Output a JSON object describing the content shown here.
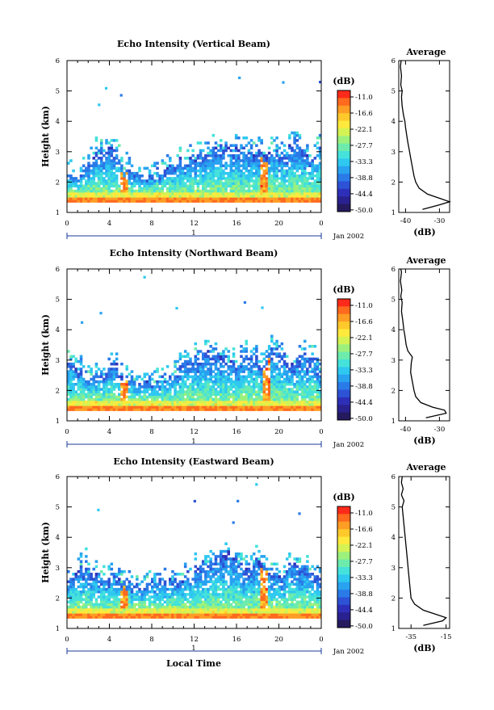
{
  "page": {
    "x_axis_label": "Local Time",
    "date_label": "Jan 2002",
    "day_label": "1",
    "colorbar_unit": "(dB)",
    "colorbar_levels": [
      "-11.0",
      "-16.6",
      "-22.1",
      "-27.7",
      "-33.3",
      "-38.8",
      "-44.4",
      "-50.0"
    ],
    "colorbar_colors": [
      "#ff2a1a",
      "#ff6a1e",
      "#ff9d25",
      "#ffc92c",
      "#ffe93c",
      "#d4f254",
      "#9cf17c",
      "#6cebad",
      "#44e2da",
      "#2fc8f0",
      "#29a2f0",
      "#2a7ae8",
      "#2d52d6",
      "#2e2fb8",
      "#2a2190",
      "#241a5e"
    ]
  },
  "chart_data": [
    {
      "type": "heatmap",
      "title": "Echo Intensity (Vertical Beam)",
      "ylabel": "Height (km)",
      "xlabel": "",
      "x_ticks": [
        "0",
        "4",
        "8",
        "12",
        "16",
        "20",
        "0"
      ],
      "xlim": [
        0,
        24
      ],
      "y_ticks": [
        "1",
        "2",
        "3",
        "4",
        "5",
        "6"
      ],
      "ylim": [
        1,
        6
      ],
      "value_range_db": [
        -50.0,
        -11.0
      ],
      "cloud_top_km": [
        2.3,
        2.2,
        2.5,
        2.9,
        3.0,
        3.1,
        2.5,
        2.4,
        2.2,
        2.3,
        2.4,
        2.6,
        2.7,
        2.8,
        2.9,
        3.0,
        3.2,
        3.3,
        3.1,
        3.0,
        2.9,
        3.0,
        3.1,
        2.8,
        3.4,
        3.0,
        2.8,
        3.5
      ],
      "bright_columns_hour": [
        5.5,
        18.5
      ],
      "average_profile": {
        "title": "Average",
        "xlabel": "(dB)",
        "x_ticks": [
          "-40",
          "-30"
        ],
        "xlim": [
          -42,
          -27
        ],
        "ylim": [
          1,
          6
        ],
        "height_km": [
          1.1,
          1.25,
          1.35,
          1.45,
          1.6,
          1.8,
          2.0,
          2.2,
          2.5,
          2.8,
          3.0,
          3.3,
          3.5,
          3.8,
          4.0,
          4.2,
          4.5,
          4.8,
          5.0,
          5.2,
          5.5,
          5.8,
          6.0
        ],
        "db": [
          -35,
          -30,
          -27,
          -29.5,
          -33.5,
          -36,
          -37,
          -37.5,
          -38,
          -38.5,
          -38.8,
          -39.3,
          -39.6,
          -40,
          -40.2,
          -40.6,
          -41,
          -41.2,
          -41,
          -41.4,
          -41.2,
          -41.5,
          -41.3
        ]
      }
    },
    {
      "type": "heatmap",
      "title": "Echo Intensity (Northward Beam)",
      "ylabel": "Height (km)",
      "xlabel": "",
      "x_ticks": [
        "0",
        "4",
        "8",
        "12",
        "16",
        "20",
        "0"
      ],
      "xlim": [
        0,
        24
      ],
      "y_ticks": [
        "1",
        "2",
        "3",
        "4",
        "5",
        "6"
      ],
      "ylim": [
        1,
        6
      ],
      "value_range_db": [
        -50.0,
        -11.0
      ],
      "cloud_top_km": [
        3.0,
        2.8,
        2.5,
        2.4,
        2.6,
        2.9,
        2.6,
        2.4,
        2.3,
        2.3,
        2.4,
        2.6,
        2.8,
        3.0,
        3.1,
        3.2,
        3.3,
        3.1,
        3.0,
        3.2,
        3.1,
        2.9,
        3.4,
        3.1,
        2.9,
        3.2,
        3.0,
        2.8
      ],
      "bright_columns_hour": [
        5.5,
        18.8
      ],
      "average_profile": {
        "title": "Average",
        "xlabel": "(dB)",
        "x_ticks": [
          "-40",
          "-30"
        ],
        "xlim": [
          -42,
          -27
        ],
        "ylim": [
          1,
          6
        ],
        "height_km": [
          1.1,
          1.25,
          1.35,
          1.45,
          1.6,
          1.8,
          2.0,
          2.3,
          2.6,
          2.9,
          3.1,
          3.3,
          3.5,
          3.8,
          4.0,
          4.3,
          4.6,
          4.9,
          5.1,
          5.3,
          5.6,
          5.9,
          6.0
        ],
        "db": [
          -34,
          -28,
          -28.5,
          -32,
          -35.5,
          -37,
          -37.5,
          -38,
          -38.5,
          -38.3,
          -38,
          -39.3,
          -39.8,
          -40.2,
          -40.5,
          -40.8,
          -41.2,
          -41,
          -41.4,
          -41.1,
          -41.5,
          -41.2,
          -41.4
        ]
      }
    },
    {
      "type": "heatmap",
      "title": "Echo Intensity (Eastward Beam)",
      "ylabel": "Height (km)",
      "xlabel": "Local Time",
      "x_ticks": [
        "0",
        "4",
        "8",
        "12",
        "16",
        "20",
        "0"
      ],
      "xlim": [
        0,
        24
      ],
      "y_ticks": [
        "1",
        "2",
        "3",
        "4",
        "5",
        "6"
      ],
      "ylim": [
        1,
        6
      ],
      "value_range_db": [
        -50.0,
        -11.0
      ],
      "cloud_top_km": [
        2.5,
        2.9,
        3.1,
        2.8,
        2.6,
        2.9,
        2.6,
        2.4,
        2.3,
        2.4,
        2.5,
        2.6,
        2.7,
        2.9,
        3.1,
        3.2,
        3.4,
        3.5,
        3.2,
        3.0,
        3.3,
        3.1,
        2.9,
        2.8,
        3.2,
        3.0,
        2.8,
        2.7
      ],
      "bright_columns_hour": [
        5.4,
        18.6
      ],
      "average_profile": {
        "title": "Average",
        "xlabel": "(dB)",
        "x_ticks": [
          "-35",
          "-15"
        ],
        "xlim": [
          -42,
          -13
        ],
        "ylim": [
          1,
          6
        ],
        "height_km": [
          1.1,
          1.25,
          1.35,
          1.45,
          1.6,
          1.8,
          2.0,
          2.3,
          2.6,
          2.9,
          3.2,
          3.5,
          3.8,
          4.1,
          4.4,
          4.7,
          5.0,
          5.2,
          5.4,
          5.6,
          5.8,
          6.0
        ],
        "db": [
          -28,
          -17,
          -15,
          -20,
          -28,
          -33,
          -35,
          -35.5,
          -36,
          -36.5,
          -37,
          -37.5,
          -38,
          -38.5,
          -39,
          -39.5,
          -40,
          -39,
          -40.5,
          -39.5,
          -40.5,
          -40
        ]
      }
    }
  ]
}
